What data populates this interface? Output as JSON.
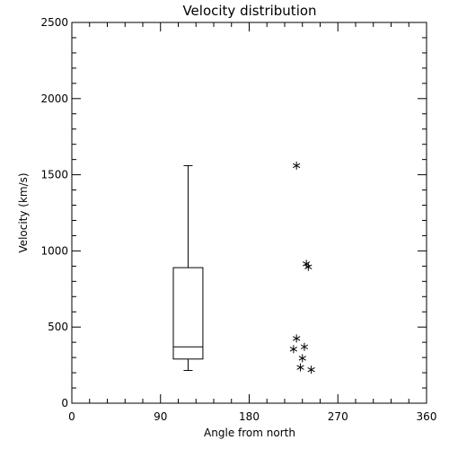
{
  "chart_data": {
    "type": "box",
    "title": "Velocity distribution",
    "xlabel": "Angle from north",
    "ylabel": "Velocity (km/s)",
    "xlim": [
      0,
      360
    ],
    "ylim": [
      0,
      2500
    ],
    "xticks": [
      0,
      90,
      180,
      270,
      360
    ],
    "yticks": [
      0,
      500,
      1000,
      1500,
      2000,
      2500
    ],
    "grid": false,
    "box": {
      "x_range": [
        103,
        133
      ],
      "whisker_low": 215,
      "q1": 290,
      "median": 370,
      "q3": 890,
      "whisker_high": 1560
    },
    "points": [
      {
        "x": 228,
        "y": 1560
      },
      {
        "x": 238,
        "y": 915
      },
      {
        "x": 240,
        "y": 895
      },
      {
        "x": 228,
        "y": 425
      },
      {
        "x": 236,
        "y": 370
      },
      {
        "x": 225,
        "y": 355
      },
      {
        "x": 234,
        "y": 295
      },
      {
        "x": 232,
        "y": 235
      },
      {
        "x": 243,
        "y": 220
      }
    ],
    "marker": "*",
    "color": "#000000"
  }
}
